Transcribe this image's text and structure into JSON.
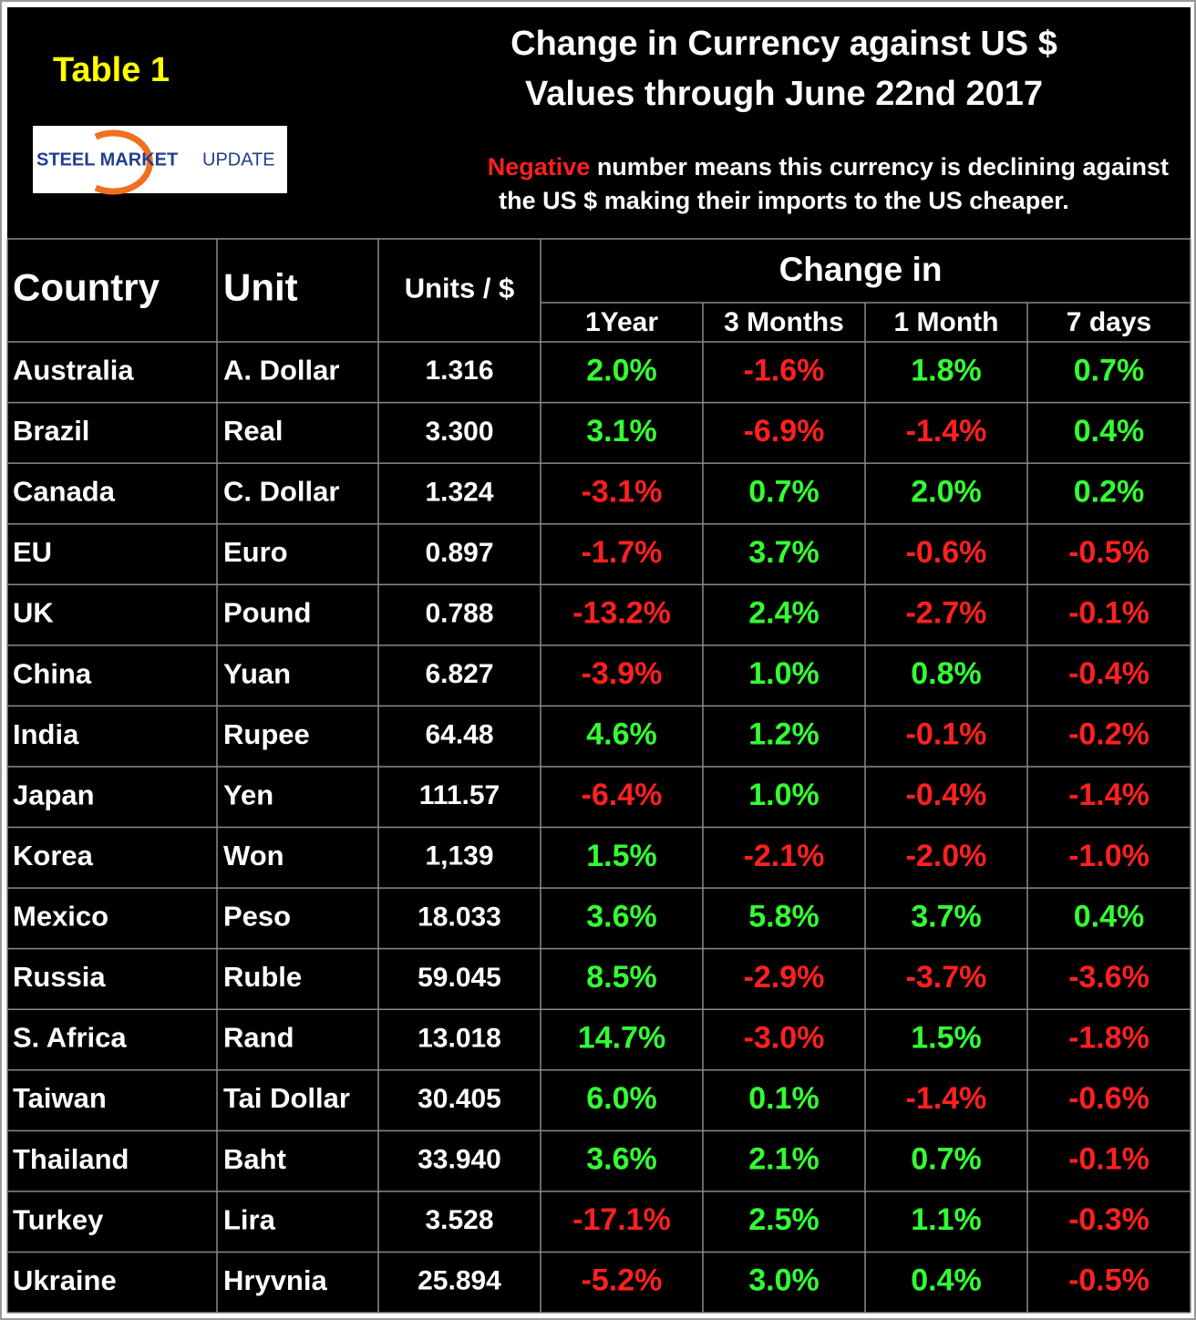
{
  "header": {
    "table_label": "Table 1",
    "title_lines": [
      "Change in Currency against US $",
      "Values through June 22nd 2017"
    ],
    "logo": {
      "main": "STEEL MARKET",
      "accent": "UPDATE"
    },
    "note": {
      "highlight": "Negative",
      "line1_rest": "number means this currency is declining against",
      "line2": "the US $ making their imports to the US cheaper."
    }
  },
  "table": {
    "columns": [
      "Country",
      "Unit",
      "Units / $"
    ],
    "group_header": "Change in",
    "subcolumns": [
      "1Year",
      "3 Months",
      "1 Month",
      "7 days"
    ],
    "rows": [
      [
        "Australia",
        "A. Dollar",
        "1.316",
        "2.0%",
        "-1.6%",
        "1.8%",
        "0.7%"
      ],
      [
        "Brazil",
        "Real",
        "3.300",
        "3.1%",
        "-6.9%",
        "-1.4%",
        "0.4%"
      ],
      [
        "Canada",
        "C. Dollar",
        "1.324",
        "-3.1%",
        "0.7%",
        "2.0%",
        "0.2%"
      ],
      [
        "EU",
        "Euro",
        "0.897",
        "-1.7%",
        "3.7%",
        "-0.6%",
        "-0.5%"
      ],
      [
        "UK",
        "Pound",
        "0.788",
        "-13.2%",
        "2.4%",
        "-2.7%",
        "-0.1%"
      ],
      [
        "China",
        "Yuan",
        "6.827",
        "-3.9%",
        "1.0%",
        "0.8%",
        "-0.4%"
      ],
      [
        "India",
        "Rupee",
        "64.48",
        "4.6%",
        "1.2%",
        "-0.1%",
        "-0.2%"
      ],
      [
        "Japan",
        "Yen",
        "111.57",
        "-6.4%",
        "1.0%",
        "-0.4%",
        "-1.4%"
      ],
      [
        "Korea",
        "Won",
        "1,139",
        "1.5%",
        "-2.1%",
        "-2.0%",
        "-1.0%"
      ],
      [
        "Mexico",
        "Peso",
        "18.033",
        "3.6%",
        "5.8%",
        "3.7%",
        "0.4%"
      ],
      [
        "Russia",
        "Ruble",
        "59.045",
        "8.5%",
        "-2.9%",
        "-3.7%",
        "-3.6%"
      ],
      [
        "S. Africa",
        "Rand",
        "13.018",
        "14.7%",
        "-3.0%",
        "1.5%",
        "-1.8%"
      ],
      [
        "Taiwan",
        "Tai Dollar",
        "30.405",
        "6.0%",
        "0.1%",
        "-1.4%",
        "-0.6%"
      ],
      [
        "Thailand",
        "Baht",
        "33.940",
        "3.6%",
        "2.1%",
        "0.7%",
        "-0.1%"
      ],
      [
        "Turkey",
        "Lira",
        "3.528",
        "-17.1%",
        "2.5%",
        "1.1%",
        "-0.3%"
      ],
      [
        "Ukraine",
        "Hryvnia",
        "25.894",
        "-5.2%",
        "3.0%",
        "0.4%",
        "-0.5%"
      ]
    ]
  }
}
